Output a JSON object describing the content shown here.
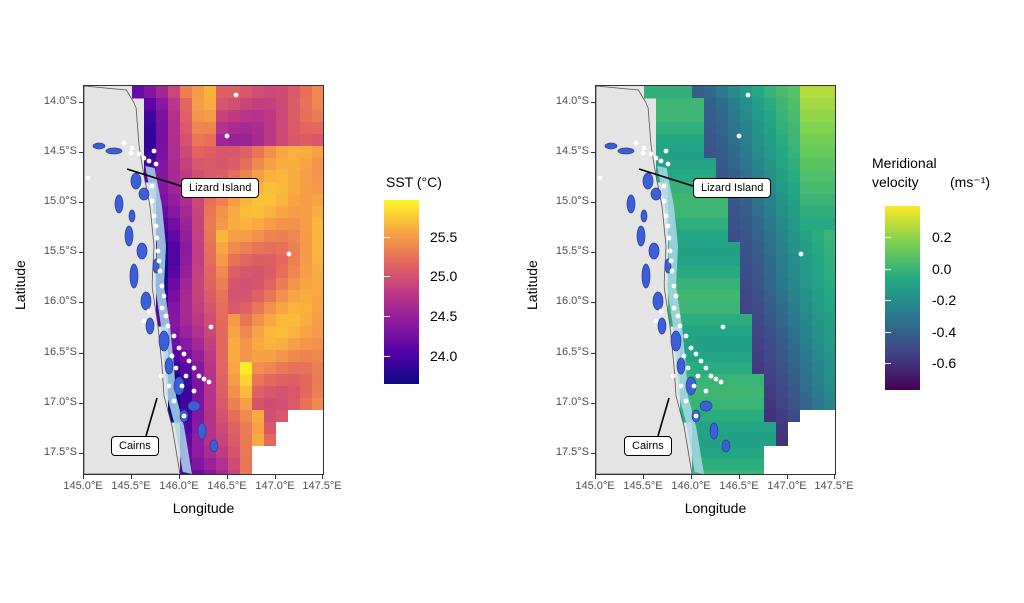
{
  "panels": [
    {
      "id": "sst",
      "x_axis_title": "Longitude",
      "y_axis_title": "Latitude",
      "lat_ticks": [
        "14.0°S",
        "14.5°S",
        "15.0°S",
        "15.5°S",
        "16.0°S",
        "16.5°S",
        "17.0°S",
        "17.5°S"
      ],
      "lon_ticks": [
        "145.0°E",
        "145.5°E",
        "146.0°E",
        "146.5°E",
        "147.0°E",
        "147.5°E"
      ],
      "label_lizard": "Lizard Island",
      "label_cairns": "Cairns",
      "legend": {
        "title": "SST (°C)",
        "ticks": [
          "25.5",
          "25.0",
          "24.5",
          "24.0"
        ],
        "colors": [
          "#fcf524",
          "#f9a842",
          "#e5695c",
          "#bf3984",
          "#8c1aa0",
          "#5303a5",
          "#0d0887"
        ],
        "range": [
          23.65,
          25.95
        ]
      },
      "palette": "plasma"
    },
    {
      "id": "meridional",
      "x_axis_title": "Longitude",
      "y_axis_title": "Latitude",
      "lat_ticks": [
        "14.0°S",
        "14.5°S",
        "15.0°S",
        "15.5°S",
        "16.0°S",
        "16.5°S",
        "17.0°S",
        "17.5°S"
      ],
      "lon_ticks": [
        "145.0°E",
        "145.5°E",
        "146.0°E",
        "146.5°E",
        "147.0°E",
        "147.5°E"
      ],
      "label_lizard": "Lizard Island",
      "label_cairns": "Cairns",
      "legend": {
        "title_line1": "Meridional",
        "title_line2": "velocity",
        "title_unit": "(ms⁻¹)",
        "ticks": [
          "0.2",
          "0.0",
          "-0.2",
          "-0.4",
          "-0.6"
        ],
        "colors": [
          "#fde725",
          "#7ad151",
          "#22a884",
          "#2a788e",
          "#414487",
          "#440154"
        ],
        "range": [
          -0.75,
          0.38
        ]
      },
      "palette": "viridis"
    }
  ]
}
